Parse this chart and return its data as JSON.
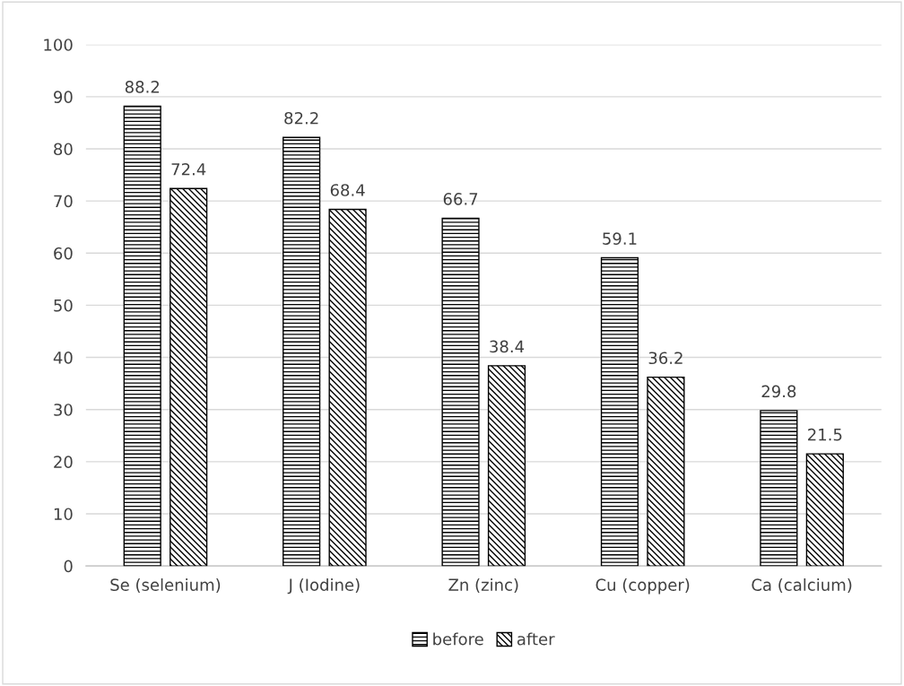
{
  "chart_data": {
    "type": "bar",
    "categories": [
      "Se (selenium)",
      "J (Iodine)",
      "Zn (zinc)",
      "Cu (copper)",
      "Ca (calcium)"
    ],
    "series": [
      {
        "name": "before",
        "color": "#000000",
        "values": [
          88.2,
          82.2,
          66.7,
          59.1,
          29.8
        ]
      },
      {
        "name": "after",
        "color": "#000000",
        "values": [
          72.4,
          68.4,
          38.4,
          36.2,
          21.5
        ]
      }
    ],
    "ylim": [
      0,
      100
    ],
    "yticks": [
      0,
      10,
      20,
      30,
      40,
      50,
      60,
      70,
      80,
      90,
      100
    ],
    "grid": "y",
    "legend": "bottom",
    "data_labels": true
  }
}
